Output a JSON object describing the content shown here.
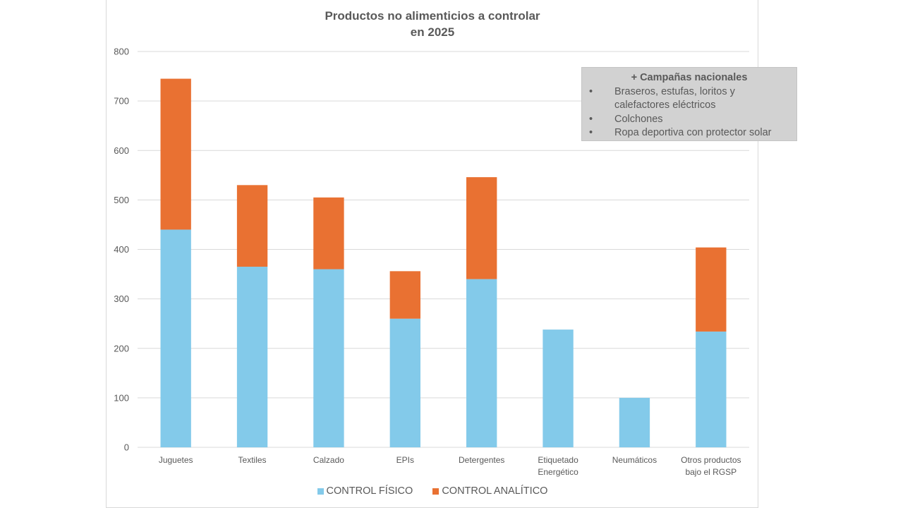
{
  "chart_data": {
    "type": "bar",
    "stacked": true,
    "title": "Productos no alimenticios a controlar en 2025",
    "title_lines": [
      "Productos no alimenticios a controlar",
      "en 2025"
    ],
    "xlabel": "",
    "ylabel": "",
    "ylim": [
      0,
      800
    ],
    "yticks": [
      0,
      100,
      200,
      300,
      400,
      500,
      600,
      700,
      800
    ],
    "grid": true,
    "legend_position": "bottom",
    "categories": [
      [
        "Juguetes"
      ],
      [
        "Textiles"
      ],
      [
        "Calzado"
      ],
      [
        "EPIs"
      ],
      [
        "Detergentes"
      ],
      [
        "Etiquetado",
        "Energético"
      ],
      [
        "Neumáticos"
      ],
      [
        "Otros productos",
        "bajo el RGSP"
      ]
    ],
    "category_names": [
      "Juguetes",
      "Textiles",
      "Calzado",
      "EPIs",
      "Detergentes",
      "Etiquetado Energético",
      "Neumáticos",
      "Otros productos bajo el RGSP"
    ],
    "series": [
      {
        "name": "CONTROL FÍSICO",
        "color": "#83CAEA",
        "values": [
          440,
          365,
          360,
          260,
          340,
          238,
          100,
          234
        ]
      },
      {
        "name": "CONTROL ANALÍTICO",
        "color": "#E97132",
        "values": [
          305,
          165,
          145,
          96,
          206,
          0,
          0,
          170
        ]
      }
    ],
    "annotation": {
      "title": "+ Campañas nacionales",
      "items": [
        [
          "Braseros, estufas, loritos y",
          "calefactores eléctricos"
        ],
        [
          "Colchones"
        ],
        [
          "Ropa deportiva con protector solar"
        ]
      ],
      "bullet": "•"
    }
  },
  "colors": {
    "text": "#595959",
    "grid": "#d9d9d9",
    "annotation_bg": "#d2d2d2"
  }
}
